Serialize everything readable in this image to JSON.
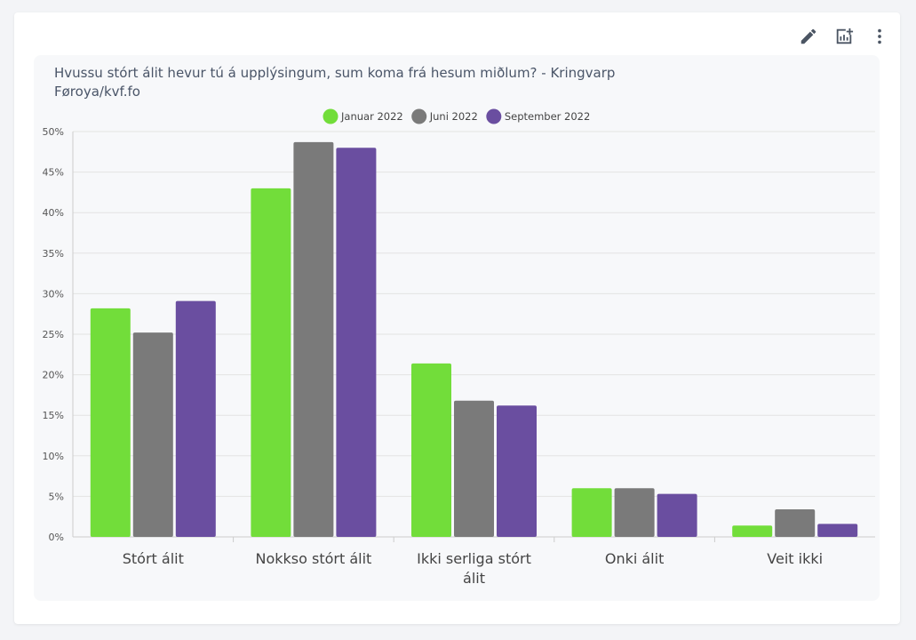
{
  "toolbar": {
    "icons": [
      "edit-icon",
      "add-chart-icon",
      "more-vert-icon"
    ]
  },
  "chart_data": {
    "type": "bar",
    "title": "Hvussu stórt álit hevur tú á upplýsingum, sum koma frá hesum miðlum? - Kringvarp Føroya/kvf.fo",
    "categories": [
      "Stórt álit",
      "Nokkso stórt álit",
      "Ikki serliga stórt álit",
      "Onki álit",
      "Veit ikki"
    ],
    "category_lines": [
      [
        "Stórt álit"
      ],
      [
        "Nokkso stórt álit"
      ],
      [
        "Ikki serliga stórt",
        "álit"
      ],
      [
        "Onki álit"
      ],
      [
        "Veit ikki"
      ]
    ],
    "series": [
      {
        "name": "Januar 2022",
        "color": "#72dd3a",
        "values": [
          28.2,
          43.0,
          21.4,
          6.0,
          1.4
        ]
      },
      {
        "name": "Juni 2022",
        "color": "#7a7a7a",
        "values": [
          25.2,
          48.7,
          16.8,
          6.0,
          3.4
        ]
      },
      {
        "name": "September 2022",
        "color": "#6a4ea0",
        "values": [
          29.1,
          48.0,
          16.2,
          5.3,
          1.6
        ]
      }
    ],
    "ylim": [
      0,
      50
    ],
    "yticks": [
      "0%",
      "5%",
      "10%",
      "15%",
      "20%",
      "25%",
      "30%",
      "35%",
      "40%",
      "45%",
      "50%"
    ],
    "grid": true,
    "legend": "top-center"
  }
}
